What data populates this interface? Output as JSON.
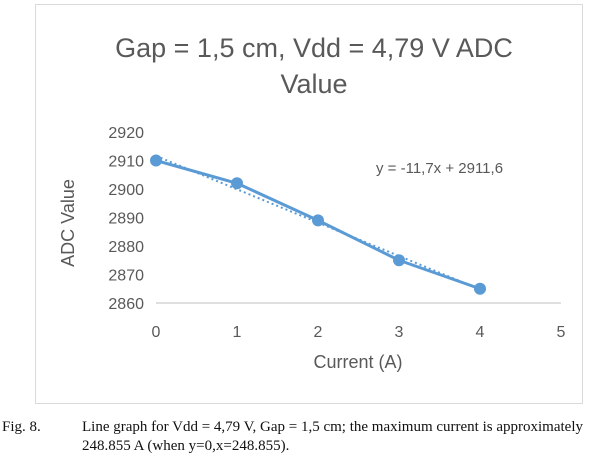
{
  "chart_data": {
    "type": "line",
    "title_lines": [
      "Gap = 1,5 cm, Vdd = 4,79 V ADC",
      "Value"
    ],
    "xlabel": "Current (A)",
    "ylabel": "ADC Value",
    "xlim": [
      0,
      5
    ],
    "ylim": [
      2860,
      2920
    ],
    "x_ticks": [
      "0",
      "1",
      "2",
      "3",
      "4",
      "5"
    ],
    "y_ticks": [
      "2860",
      "2870",
      "2880",
      "2890",
      "2900",
      "2910",
      "2920"
    ],
    "series": [
      {
        "x": [
          0,
          1,
          2,
          3,
          4
        ],
        "values": [
          2910,
          2902,
          2889,
          2875,
          2865
        ]
      }
    ],
    "trendline": {
      "type": "linear",
      "slope": -11.7,
      "intercept": 2911.6,
      "style": "dotted"
    },
    "annotation": "y = -11,7x + 2911,6",
    "grid": false,
    "legend": "none",
    "colors": {
      "series": "#5b9bd5",
      "text": "#595959",
      "axis": "#bfbfbf",
      "frame": "#d9d9d9"
    }
  },
  "caption": {
    "label": "Fig. 8.",
    "text": "Line graph for Vdd = 4,79 V, Gap = 1,5 cm; the maximum current is approximately 248.855 A (when y=0,x=248.855)."
  }
}
